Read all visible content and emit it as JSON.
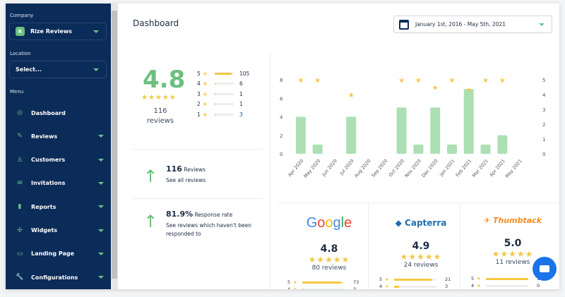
{
  "sidebar": {
    "company_label": "Company",
    "company_badge": "R",
    "company_value": "Rize Reviews",
    "location_label": "Location",
    "location_value": "Select...",
    "menu_label": "Menu",
    "items": [
      {
        "label": "Dashboard",
        "icon": "dashboard-icon"
      },
      {
        "label": "Reviews",
        "icon": "pencil-icon"
      },
      {
        "label": "Customers",
        "icon": "user-icon"
      },
      {
        "label": "Invitations",
        "icon": "envelope-icon"
      },
      {
        "label": "Reports",
        "icon": "bar-chart-icon"
      },
      {
        "label": "Widgets",
        "icon": "puzzle-icon"
      },
      {
        "label": "Landing Page",
        "icon": "browser-icon"
      },
      {
        "label": "Configurations",
        "icon": "wrench-icon"
      }
    ]
  },
  "header": {
    "title": "Dashboard",
    "date_range": "January 1st, 2016 - May 5th, 2021"
  },
  "summary": {
    "rating": "4.8",
    "count": "116",
    "count_label": "reviews",
    "distribution": [
      {
        "star": "5",
        "count": "105",
        "pct": 90
      },
      {
        "star": "4",
        "count": "6",
        "pct": 5
      },
      {
        "star": "3",
        "count": "1",
        "pct": 1
      },
      {
        "star": "2",
        "count": "1",
        "pct": 1
      },
      {
        "star": "1",
        "count": "3",
        "pct": 3
      }
    ]
  },
  "stats": [
    {
      "value": "116",
      "label": "Reviews",
      "link": "See all reviews"
    },
    {
      "value": "81.9%",
      "label": "Response rate",
      "link": "See reviews which haven't been responded to"
    }
  ],
  "chart_data": {
    "type": "bar",
    "categories": [
      "Apr 2020",
      "May 2020",
      "Jun 2020",
      "Jul 2020",
      "Aug 2020",
      "Sep 2020",
      "Oct 2020",
      "Nov 2020",
      "Dec 2020",
      "Jan 2021",
      "Feb 2021",
      "Mar 2021",
      "Apr 2021",
      "May 2021"
    ],
    "series": [
      {
        "type": "bar",
        "axis": "left",
        "values": [
          4,
          1,
          0,
          4,
          0,
          0,
          5,
          1,
          5,
          1,
          7,
          1,
          2,
          0
        ],
        "color": "#addfb5"
      },
      {
        "type": "scatter",
        "marker": "star",
        "axis": "right",
        "values": [
          5,
          5,
          null,
          4,
          null,
          null,
          5,
          5,
          4.5,
          5,
          4.33,
          5,
          5,
          null
        ],
        "color": "#f5c842"
      }
    ],
    "ylim_left": [
      0,
      8
    ],
    "yticks_left": [
      "0",
      "2",
      "4",
      "6",
      "8"
    ],
    "ylim_right": [
      0,
      5
    ],
    "yticks_right": [
      "0",
      "1",
      "2",
      "3",
      "4",
      "5"
    ],
    "grid": false
  },
  "sites": [
    {
      "name": "Google",
      "rating": "4.8",
      "reviews": "80 reviews",
      "rows": [
        {
          "star": "5",
          "count": "73",
          "pct": 91
        },
        {
          "star": "4",
          "count": "3",
          "pct": 4
        }
      ]
    },
    {
      "name": "Capterra",
      "rating": "4.9",
      "reviews": "24 reviews",
      "rows": [
        {
          "star": "5",
          "count": "21",
          "pct": 88
        },
        {
          "star": "4",
          "count": "3",
          "pct": 12
        }
      ]
    },
    {
      "name": "Thumbtack",
      "rating": "5.0",
      "reviews": "11 reviews",
      "rows": [
        {
          "star": "5",
          "count": "11",
          "pct": 100
        },
        {
          "star": "4",
          "count": "0",
          "pct": 0
        }
      ]
    }
  ],
  "colors": {
    "sidebar": "#0b2b58",
    "accent": "#6bbf7f",
    "star": "#f5c842",
    "chat": "#1a73e8"
  }
}
